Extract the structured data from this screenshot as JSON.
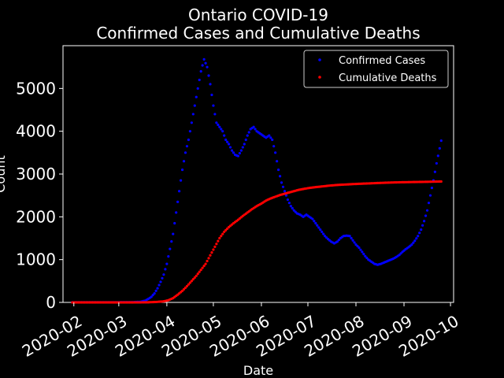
{
  "chart_data": {
    "type": "scatter",
    "title_line1": "Ontario COVID-19",
    "title_line2": "Confirmed Cases and Cumulative Deaths",
    "xlabel": "Date",
    "ylabel": "Count",
    "ylim": [
      0,
      6000
    ],
    "xlim": [
      "2020-01-25",
      "2020-10-03"
    ],
    "yticks": [
      0,
      1000,
      2000,
      3000,
      4000,
      5000
    ],
    "xticks": [
      "2020-02",
      "2020-03",
      "2020-04",
      "2020-05",
      "2020-06",
      "2020-07",
      "2020-08",
      "2020-09",
      "2020-10"
    ],
    "legend_position": "top-right",
    "grid": false,
    "series": [
      {
        "name": "Confirmed Cases",
        "color": "#0000ff",
        "points": [
          [
            "2020-01-31",
            2
          ],
          [
            "2020-02-10",
            3
          ],
          [
            "2020-02-20",
            3
          ],
          [
            "2020-03-01",
            4
          ],
          [
            "2020-03-10",
            5
          ],
          [
            "2020-03-15",
            15
          ],
          [
            "2020-03-18",
            40
          ],
          [
            "2020-03-20",
            80
          ],
          [
            "2020-03-22",
            130
          ],
          [
            "2020-03-24",
            210
          ],
          [
            "2020-03-26",
            330
          ],
          [
            "2020-03-28",
            480
          ],
          [
            "2020-03-30",
            650
          ],
          [
            "2020-04-01",
            900
          ],
          [
            "2020-04-03",
            1250
          ],
          [
            "2020-04-05",
            1600
          ],
          [
            "2020-04-07",
            2100
          ],
          [
            "2020-04-09",
            2600
          ],
          [
            "2020-04-11",
            3100
          ],
          [
            "2020-04-13",
            3500
          ],
          [
            "2020-04-15",
            3800
          ],
          [
            "2020-04-17",
            4200
          ],
          [
            "2020-04-19",
            4600
          ],
          [
            "2020-04-21",
            5000
          ],
          [
            "2020-04-23",
            5400
          ],
          [
            "2020-04-25",
            5680
          ],
          [
            "2020-04-27",
            5500
          ],
          [
            "2020-04-29",
            5100
          ],
          [
            "2020-05-01",
            4600
          ],
          [
            "2020-05-03",
            4200
          ],
          [
            "2020-05-05",
            4100
          ],
          [
            "2020-05-07",
            4000
          ],
          [
            "2020-05-09",
            3800
          ],
          [
            "2020-05-11",
            3700
          ],
          [
            "2020-05-13",
            3550
          ],
          [
            "2020-05-15",
            3450
          ],
          [
            "2020-05-17",
            3420
          ],
          [
            "2020-05-19",
            3550
          ],
          [
            "2020-05-21",
            3700
          ],
          [
            "2020-05-23",
            3900
          ],
          [
            "2020-05-25",
            4050
          ],
          [
            "2020-05-27",
            4100
          ],
          [
            "2020-05-29",
            4000
          ],
          [
            "2020-05-31",
            3950
          ],
          [
            "2020-06-02",
            3900
          ],
          [
            "2020-06-04",
            3850
          ],
          [
            "2020-06-06",
            3900
          ],
          [
            "2020-06-08",
            3800
          ],
          [
            "2020-06-10",
            3500
          ],
          [
            "2020-06-12",
            3100
          ],
          [
            "2020-06-14",
            2800
          ],
          [
            "2020-06-16",
            2600
          ],
          [
            "2020-06-18",
            2400
          ],
          [
            "2020-06-20",
            2250
          ],
          [
            "2020-06-22",
            2150
          ],
          [
            "2020-06-24",
            2080
          ],
          [
            "2020-06-26",
            2050
          ],
          [
            "2020-06-28",
            2000
          ],
          [
            "2020-06-30",
            2050
          ],
          [
            "2020-07-02",
            2000
          ],
          [
            "2020-07-04",
            1950
          ],
          [
            "2020-07-06",
            1850
          ],
          [
            "2020-07-08",
            1750
          ],
          [
            "2020-07-10",
            1650
          ],
          [
            "2020-07-12",
            1550
          ],
          [
            "2020-07-14",
            1480
          ],
          [
            "2020-07-16",
            1420
          ],
          [
            "2020-07-18",
            1380
          ],
          [
            "2020-07-20",
            1420
          ],
          [
            "2020-07-22",
            1500
          ],
          [
            "2020-07-24",
            1550
          ],
          [
            "2020-07-26",
            1560
          ],
          [
            "2020-07-28",
            1550
          ],
          [
            "2020-07-30",
            1450
          ],
          [
            "2020-08-01",
            1350
          ],
          [
            "2020-08-03",
            1280
          ],
          [
            "2020-08-05",
            1180
          ],
          [
            "2020-08-07",
            1080
          ],
          [
            "2020-08-09",
            1000
          ],
          [
            "2020-08-11",
            950
          ],
          [
            "2020-08-13",
            900
          ],
          [
            "2020-08-15",
            880
          ],
          [
            "2020-08-17",
            900
          ],
          [
            "2020-08-19",
            930
          ],
          [
            "2020-08-21",
            960
          ],
          [
            "2020-08-23",
            990
          ],
          [
            "2020-08-25",
            1020
          ],
          [
            "2020-08-27",
            1060
          ],
          [
            "2020-08-29",
            1110
          ],
          [
            "2020-08-31",
            1180
          ],
          [
            "2020-09-02",
            1240
          ],
          [
            "2020-09-04",
            1290
          ],
          [
            "2020-09-06",
            1350
          ],
          [
            "2020-09-08",
            1440
          ],
          [
            "2020-09-10",
            1550
          ],
          [
            "2020-09-12",
            1700
          ],
          [
            "2020-09-14",
            1900
          ],
          [
            "2020-09-16",
            2150
          ],
          [
            "2020-09-18",
            2500
          ],
          [
            "2020-09-20",
            2850
          ],
          [
            "2020-09-22",
            3250
          ],
          [
            "2020-09-24",
            3600
          ],
          [
            "2020-09-25",
            3780
          ]
        ]
      },
      {
        "name": "Cumulative Deaths",
        "color": "#ff0000",
        "points": [
          [
            "2020-01-31",
            0
          ],
          [
            "2020-02-15",
            0
          ],
          [
            "2020-03-01",
            0
          ],
          [
            "2020-03-15",
            1
          ],
          [
            "2020-03-20",
            3
          ],
          [
            "2020-03-25",
            10
          ],
          [
            "2020-03-30",
            25
          ],
          [
            "2020-04-02",
            50
          ],
          [
            "2020-04-05",
            100
          ],
          [
            "2020-04-08",
            180
          ],
          [
            "2020-04-11",
            270
          ],
          [
            "2020-04-14",
            380
          ],
          [
            "2020-04-17",
            500
          ],
          [
            "2020-04-20",
            620
          ],
          [
            "2020-04-23",
            760
          ],
          [
            "2020-04-26",
            900
          ],
          [
            "2020-04-29",
            1100
          ],
          [
            "2020-05-02",
            1300
          ],
          [
            "2020-05-05",
            1500
          ],
          [
            "2020-05-08",
            1650
          ],
          [
            "2020-05-11",
            1760
          ],
          [
            "2020-05-14",
            1850
          ],
          [
            "2020-05-17",
            1930
          ],
          [
            "2020-05-20",
            2020
          ],
          [
            "2020-05-23",
            2100
          ],
          [
            "2020-05-26",
            2180
          ],
          [
            "2020-05-29",
            2250
          ],
          [
            "2020-06-01",
            2310
          ],
          [
            "2020-06-04",
            2380
          ],
          [
            "2020-06-07",
            2430
          ],
          [
            "2020-06-10",
            2470
          ],
          [
            "2020-06-13",
            2510
          ],
          [
            "2020-06-16",
            2540
          ],
          [
            "2020-06-19",
            2570
          ],
          [
            "2020-06-22",
            2600
          ],
          [
            "2020-06-25",
            2630
          ],
          [
            "2020-06-28",
            2650
          ],
          [
            "2020-07-01",
            2670
          ],
          [
            "2020-07-05",
            2690
          ],
          [
            "2020-07-10",
            2710
          ],
          [
            "2020-07-15",
            2730
          ],
          [
            "2020-07-20",
            2745
          ],
          [
            "2020-07-25",
            2755
          ],
          [
            "2020-07-30",
            2765
          ],
          [
            "2020-08-05",
            2775
          ],
          [
            "2020-08-10",
            2782
          ],
          [
            "2020-08-15",
            2790
          ],
          [
            "2020-08-20",
            2797
          ],
          [
            "2020-08-25",
            2803
          ],
          [
            "2020-08-30",
            2808
          ],
          [
            "2020-09-05",
            2812
          ],
          [
            "2020-09-10",
            2815
          ],
          [
            "2020-09-15",
            2818
          ],
          [
            "2020-09-20",
            2822
          ],
          [
            "2020-09-25",
            2826
          ]
        ]
      }
    ]
  }
}
